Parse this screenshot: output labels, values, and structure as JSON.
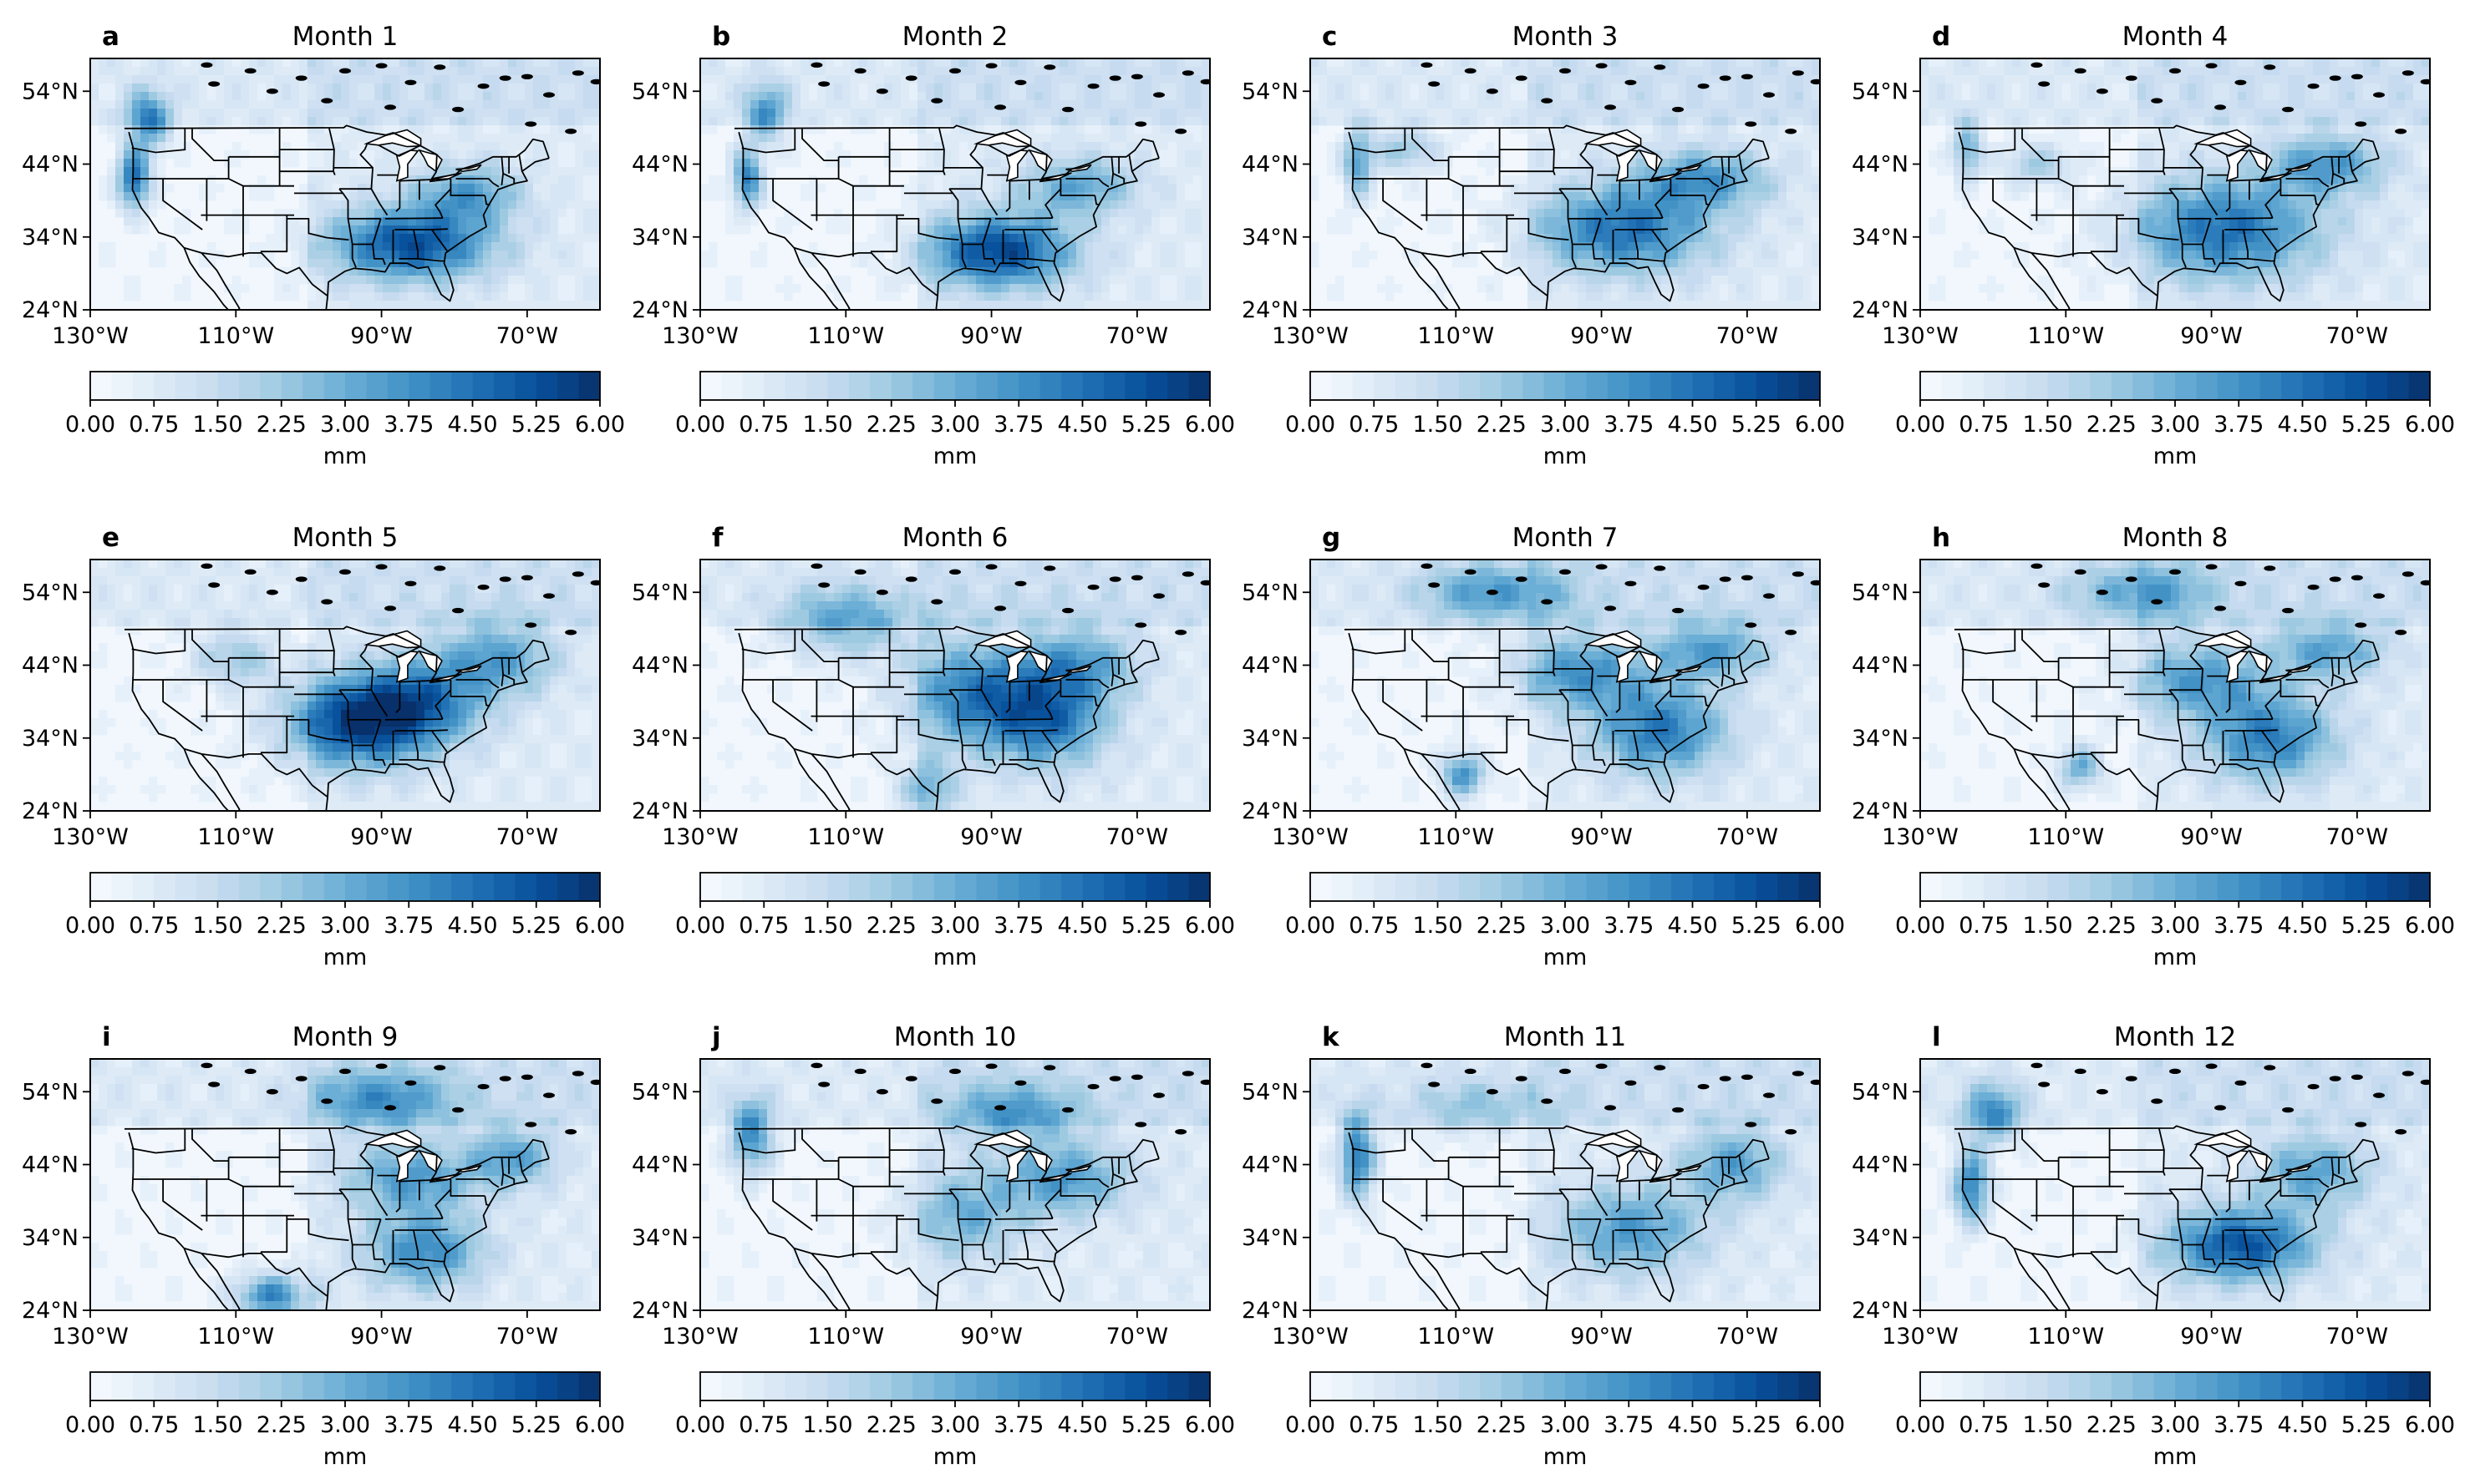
{
  "figure": {
    "panels": [
      {
        "letter": "a",
        "title": "Month 1"
      },
      {
        "letter": "b",
        "title": "Month 2"
      },
      {
        "letter": "c",
        "title": "Month 3"
      },
      {
        "letter": "d",
        "title": "Month 4"
      },
      {
        "letter": "e",
        "title": "Month 5"
      },
      {
        "letter": "f",
        "title": "Month 6"
      },
      {
        "letter": "g",
        "title": "Month 7"
      },
      {
        "letter": "h",
        "title": "Month 8"
      },
      {
        "letter": "i",
        "title": "Month 9"
      },
      {
        "letter": "j",
        "title": "Month 10"
      },
      {
        "letter": "k",
        "title": "Month 11"
      },
      {
        "letter": "l",
        "title": "Month 12"
      }
    ],
    "map": {
      "lon_range": [
        -130,
        -60
      ],
      "lat_range": [
        24,
        58.5
      ],
      "lon_ticks": [
        {
          "value": -130,
          "label": "130°W"
        },
        {
          "value": -110,
          "label": "110°W"
        },
        {
          "value": -90,
          "label": "90°W"
        },
        {
          "value": -70,
          "label": "70°W"
        }
      ],
      "lat_ticks": [
        {
          "value": 24,
          "label": "24°N"
        },
        {
          "value": 34,
          "label": "34°N"
        },
        {
          "value": 44,
          "label": "44°N"
        },
        {
          "value": 54,
          "label": "54°N"
        }
      ]
    },
    "colorbar": {
      "label": "mm",
      "range": [
        0,
        6
      ],
      "levels": 24,
      "ticks": [
        "0.00",
        "0.75",
        "1.50",
        "2.25",
        "3.00",
        "3.75",
        "4.50",
        "5.25",
        "6.00"
      ],
      "colors": [
        "#f7fbff",
        "#deebf7",
        "#c6dbef",
        "#9ecae1",
        "#6baed6",
        "#4292c6",
        "#2171b5",
        "#08519c",
        "#08306b"
      ]
    }
  }
}
